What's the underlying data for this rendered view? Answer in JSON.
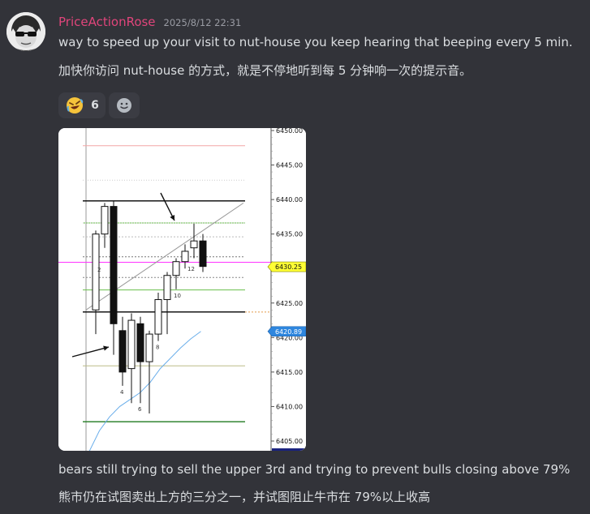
{
  "message": {
    "username": "PriceActionRose",
    "timestamp": "2025/8/12 22:31",
    "lines": [
      "way to speed up your visit to nut-house you keep hearing that beeping every 5 min.",
      "加快你访问 nut-house 的方式，就是不停地听到每 5 分钟响一次的提示音。"
    ],
    "caption_lines": [
      "bears still trying to  sell the upper 3rd and trying to prevent bulls closing above 79%",
      "熊市仍在试图卖出上方的三分之一，并试图阻止牛市在 79%以上收高"
    ]
  },
  "reactions": [
    {
      "emoji": "rofl-emoji",
      "count": "6"
    },
    {
      "emoji": "add-reaction-icon"
    }
  ],
  "chart_data": {
    "type": "candlestick",
    "y_ticks": [
      "6450.00",
      "6445.00",
      "6440.00",
      "6435.00",
      "6430.00",
      "6425.00",
      "6420.00",
      "6415.00",
      "6410.00",
      "6405.00"
    ],
    "ylim": [
      6404,
      6450.5
    ],
    "price_marker": "6430.25",
    "price_marker_color": "#ffff33",
    "ma_marker": "6420.89",
    "ma_marker_color": "#2e86de",
    "bar_labels": [
      {
        "bar": 2,
        "label": "2"
      },
      {
        "bar": 4,
        "label": "4"
      },
      {
        "bar": 6,
        "label": "6"
      },
      {
        "bar": 8,
        "label": "8"
      },
      {
        "bar": 10,
        "label": "10"
      },
      {
        "bar": 12,
        "label": "12"
      }
    ],
    "candles": [
      {
        "o": 6424,
        "h": 6435.5,
        "l": 6420.5,
        "c": 6435
      },
      {
        "o": 6435,
        "h": 6439.5,
        "l": 6433,
        "c": 6439
      },
      {
        "o": 6439,
        "h": 6439.8,
        "l": 6417.5,
        "c": 6422
      },
      {
        "o": 6421,
        "h": 6423,
        "l": 6413,
        "c": 6415
      },
      {
        "o": 6415.5,
        "h": 6423.5,
        "l": 6410.5,
        "c": 6422.5
      },
      {
        "o": 6422,
        "h": 6423,
        "l": 6410.5,
        "c": 6416.5
      },
      {
        "o": 6416.5,
        "h": 6421,
        "l": 6409,
        "c": 6420.5
      },
      {
        "o": 6420.5,
        "h": 6426.5,
        "l": 6419.5,
        "c": 6425.5
      },
      {
        "o": 6425.5,
        "h": 6429.5,
        "l": 6420.5,
        "c": 6429
      },
      {
        "o": 6429,
        "h": 6431.5,
        "l": 6427,
        "c": 6431
      },
      {
        "o": 6431,
        "h": 6433.5,
        "l": 6430,
        "c": 6432.5
      },
      {
        "o": 6433,
        "h": 6436.5,
        "l": 6431.5,
        "c": 6434
      },
      {
        "o": 6434,
        "h": 6435,
        "l": 6429.5,
        "c": 6430.3
      }
    ],
    "hlines": [
      {
        "y": 6447.8,
        "color": "#f4a6a6",
        "dash": false
      },
      {
        "y": 6439.8,
        "color": "#000000",
        "dash": false
      },
      {
        "y": 6436.6,
        "color": "#6abf4b",
        "dash": false
      },
      {
        "y": 6434.6,
        "color": "#bbbbbb",
        "dash": true
      },
      {
        "y": 6431.7,
        "color": "#777777",
        "dash": true
      },
      {
        "y": 6430.9,
        "color": "#ff33ff",
        "dash": false
      },
      {
        "y": 6428.7,
        "color": "#888888",
        "dash": true
      },
      {
        "y": 6426.9,
        "color": "#6abf4b",
        "dash": false
      },
      {
        "y": 6423.7,
        "color": "#000000",
        "dash": false
      },
      {
        "y": 6415.9,
        "color": "#bbbb88",
        "dash": false
      },
      {
        "y": 6407.8,
        "color": "#1f7a1f",
        "dash": false
      }
    ],
    "upper_dotted": [
      6442.8,
      6436.6
    ],
    "ma_points": [
      [
        0,
        6403.5
      ],
      [
        1,
        6406.5
      ],
      [
        2,
        6408.5
      ],
      [
        3,
        6410
      ],
      [
        4,
        6411
      ],
      [
        5,
        6412
      ],
      [
        6,
        6413.5
      ],
      [
        7,
        6415.5
      ],
      [
        8,
        6417
      ],
      [
        9,
        6418.5
      ],
      [
        10,
        6419.8
      ],
      [
        11,
        6420.89
      ]
    ],
    "trendline": {
      "from": [
        0,
        6424.0
      ],
      "to": [
        14,
        6439.5
      ]
    }
  }
}
